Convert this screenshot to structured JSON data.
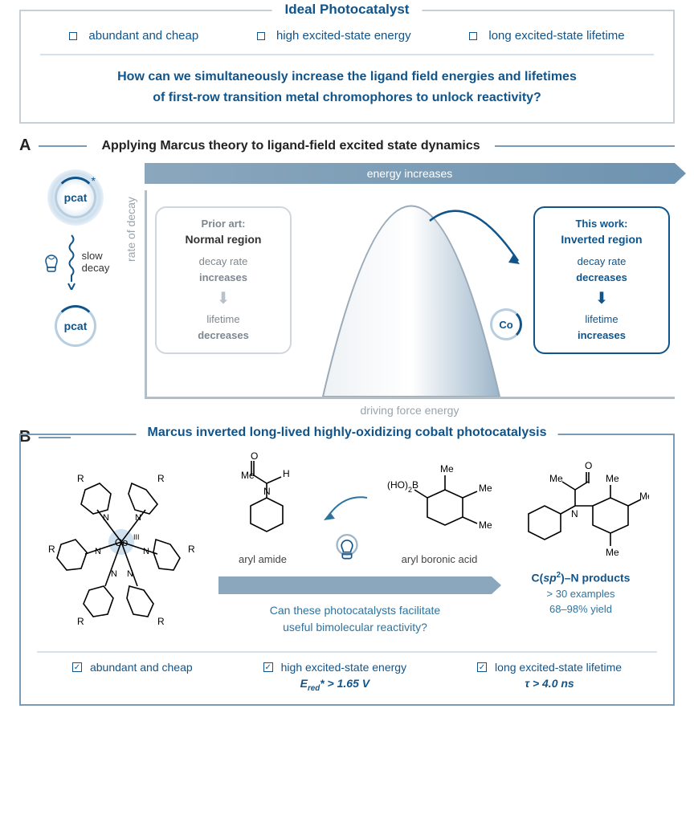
{
  "ideal": {
    "title": "Ideal Photocatalyst",
    "items": [
      "abundant and cheap",
      "high excited-state energy",
      "long excited-state lifetime"
    ],
    "question_l1": "How can we simultaneously increase the ligand field energies and lifetimes",
    "question_l2": "of first-row transition metal chromophores to unlock reactivity?"
  },
  "sectionA": {
    "letter": "A",
    "title": "Applying Marcus theory to ligand-field excited state dynamics",
    "energy_bar": "energy increases",
    "y_axis": "rate of decay",
    "x_axis": "driving force energy",
    "pcat": "pcat",
    "slow": "slow",
    "decay": "decay",
    "co": "Co",
    "normal": {
      "pre": "Prior art:",
      "title": "Normal region",
      "l1a": "decay rate",
      "l1b": "increases",
      "l2a": "lifetime",
      "l2b": "decreases"
    },
    "inverted": {
      "pre": "This work:",
      "title": "Inverted region",
      "l1a": "decay rate",
      "l1b": "decreases",
      "l2a": "lifetime",
      "l2b": "increases"
    },
    "colors": {
      "bar_start": "#8aa7bd",
      "bar_end": "#6f94b1",
      "axis": "#b3bec7",
      "accent": "#10548a"
    }
  },
  "sectionB": {
    "letter": "B",
    "title": "Marcus inverted long-lived highly-oxidizing cobalt photocatalysis",
    "amide_label": "aryl amide",
    "boronic_label": "aryl boronic acid",
    "question_l1": "Can these photocatalysts facilitate",
    "question_l2": "useful bimolecular reactivity?",
    "product_title_html": "C(<i>sp</i><sup>2</sup>)–N products",
    "product_sub1": "> 30 examples",
    "product_sub2": "68–98% yield",
    "checks": [
      {
        "label": "abundant and cheap",
        "sub": ""
      },
      {
        "label": "high excited-state energy",
        "sub_html": "<i>E</i><sub>red</sub>* > 1.65 V"
      },
      {
        "label": "long excited-state lifetime",
        "sub_html": "<i>τ</i> > 4.0 ns"
      }
    ],
    "atoms": {
      "Me": "Me",
      "O": "O",
      "H": "H",
      "N": "N",
      "B": "B",
      "HO2": "(HO)",
      "R": "R",
      "Co": "Co",
      "III": "III"
    }
  }
}
